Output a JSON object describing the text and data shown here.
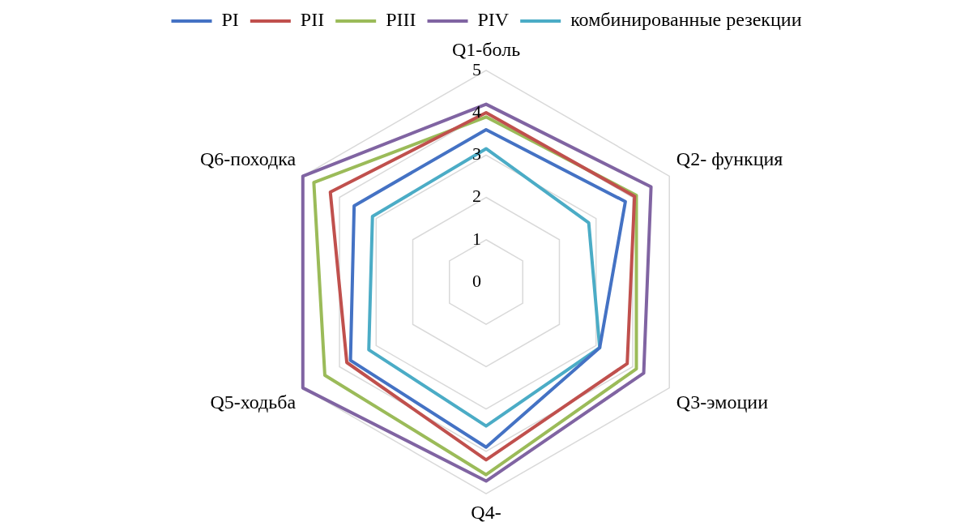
{
  "chart_data": {
    "type": "radar",
    "categories": [
      "Q1-боль",
      "Q2- функция",
      "Q3-эмоции",
      "Q4-",
      "Q5-ходьба",
      "Q6-походка"
    ],
    "ylim": [
      0,
      5
    ],
    "yticks": [
      0,
      1,
      2,
      3,
      4,
      5
    ],
    "grid": true,
    "legend": "top",
    "marker": "none",
    "series": [
      {
        "name": "PI",
        "color": "#4472c4",
        "values": [
          3.6,
          3.8,
          3.1,
          3.9,
          3.7,
          3.6
        ]
      },
      {
        "name": "PII",
        "color": "#c0504d",
        "values": [
          4.0,
          4.05,
          3.85,
          4.2,
          3.8,
          4.25
        ]
      },
      {
        "name": "PIII",
        "color": "#9bbb59",
        "values": [
          3.9,
          4.1,
          4.1,
          4.55,
          4.4,
          4.7
        ]
      },
      {
        "name": "PIV",
        "color": "#8064a2",
        "values": [
          4.2,
          4.5,
          4.3,
          4.7,
          5.0,
          5.0
        ]
      },
      {
        "name": "комбинированные резекции",
        "color": "#4bacc6",
        "values": [
          3.15,
          2.8,
          3.1,
          3.4,
          3.2,
          3.1
        ]
      }
    ]
  }
}
